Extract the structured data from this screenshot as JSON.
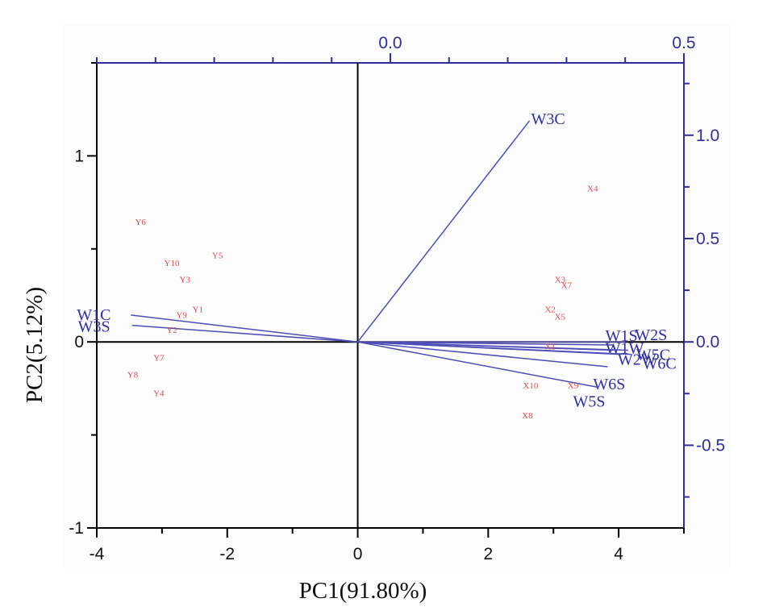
{
  "chart_data": {
    "type": "scatter",
    "xlabel": "PC1(91.80%)",
    "ylabel": "PC2(5.12%)",
    "primary_axes": {
      "xlim": [
        -4,
        5
      ],
      "ylim": [
        -1,
        1.5
      ],
      "x_ticks": [
        -4,
        -2,
        0,
        2,
        4
      ],
      "y_ticks": [
        -1,
        0,
        1
      ]
    },
    "secondary_axes": {
      "xlim": [
        -0.5,
        0.5
      ],
      "ylim": [
        -0.9,
        1.35
      ],
      "top_ticks": [
        0.0,
        0.5
      ],
      "right_ticks": [
        -0.5,
        0.0,
        0.5,
        1.0
      ]
    },
    "scores": [
      {
        "label": "Y6",
        "x": -3.33,
        "y": 0.64
      },
      {
        "label": "Y5",
        "x": -2.15,
        "y": 0.46
      },
      {
        "label": "Y10",
        "x": -2.85,
        "y": 0.42
      },
      {
        "label": "Y3",
        "x": -2.65,
        "y": 0.33
      },
      {
        "label": "Y1",
        "x": -2.45,
        "y": 0.17
      },
      {
        "label": "Y9",
        "x": -2.7,
        "y": 0.14
      },
      {
        "label": "Y2",
        "x": -2.85,
        "y": 0.06
      },
      {
        "label": "Y7",
        "x": -3.05,
        "y": -0.09
      },
      {
        "label": "Y8",
        "x": -3.45,
        "y": -0.18
      },
      {
        "label": "Y4",
        "x": -3.05,
        "y": -0.28
      },
      {
        "label": "X4",
        "x": 3.6,
        "y": 0.82
      },
      {
        "label": "X3",
        "x": 3.1,
        "y": 0.33
      },
      {
        "label": "X7",
        "x": 3.2,
        "y": 0.3
      },
      {
        "label": "X2",
        "x": 2.95,
        "y": 0.17
      },
      {
        "label": "X5",
        "x": 3.1,
        "y": 0.13
      },
      {
        "label": "X1",
        "x": 2.95,
        "y": -0.03
      },
      {
        "label": "X10",
        "x": 2.65,
        "y": -0.24
      },
      {
        "label": "X9",
        "x": 3.3,
        "y": -0.24
      },
      {
        "label": "X8",
        "x": 2.6,
        "y": -0.4
      }
    ],
    "loadings": [
      {
        "label": "W3C",
        "x": 0.237,
        "y": 1.07
      },
      {
        "label": "W1C",
        "x": -0.442,
        "y": 0.13
      },
      {
        "label": "W3S",
        "x": -0.44,
        "y": 0.08
      },
      {
        "label": "W1S",
        "x": 0.38,
        "y": -0.015
      },
      {
        "label": "W1W",
        "x": 0.38,
        "y": -0.04
      },
      {
        "label": "W2S",
        "x": 0.4,
        "y": 0.0
      },
      {
        "label": "W2W",
        "x": 0.39,
        "y": -0.06
      },
      {
        "label": "W5C",
        "x": 0.405,
        "y": -0.04
      },
      {
        "label": "W6C",
        "x": 0.41,
        "y": -0.06
      },
      {
        "label": "W6S",
        "x": 0.37,
        "y": -0.12
      },
      {
        "label": "W5S",
        "x": 0.355,
        "y": -0.22
      }
    ]
  }
}
